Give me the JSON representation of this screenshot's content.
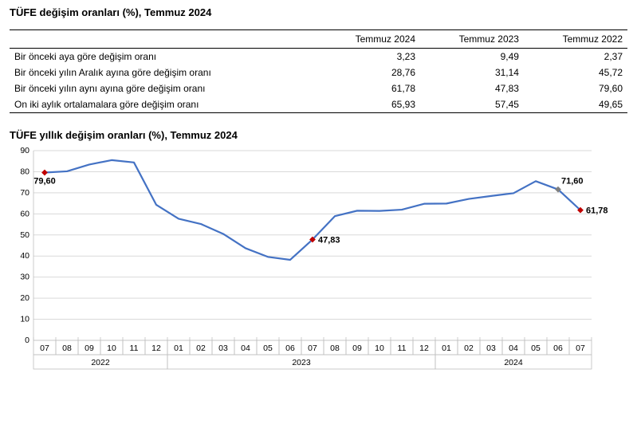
{
  "table": {
    "title": "TÜFE değişim oranları (%), Temmuz 2024",
    "columns": [
      "",
      "Temmuz 2024",
      "Temmuz 2023",
      "Temmuz 2022"
    ],
    "rows": [
      {
        "label": "Bir önceki aya göre değişim oranı",
        "v2024": "3,23",
        "v2023": "9,49",
        "v2022": "2,37"
      },
      {
        "label": "Bir önceki yılın Aralık ayına göre değişim oranı",
        "v2024": "28,76",
        "v2023": "31,14",
        "v2022": "45,72"
      },
      {
        "label": "Bir önceki yılın aynı ayına göre değişim oranı",
        "v2024": "61,78",
        "v2023": "47,83",
        "v2022": "79,60"
      },
      {
        "label": "On iki aylık ortalamalara göre değişim oranı",
        "v2024": "65,93",
        "v2023": "57,45",
        "v2022": "49,65"
      }
    ]
  },
  "chart": {
    "title": "TÜFE yıllık değişim oranları (%), Temmuz 2024",
    "type": "line",
    "ylim": [
      0,
      90
    ],
    "ytick_step": 10,
    "yticks": [
      0,
      10,
      20,
      30,
      40,
      50,
      60,
      70,
      80,
      90
    ],
    "grid_color": "#d9d9d9",
    "axis_color": "#bfbfbf",
    "line_color": "#4472c4",
    "line_width": 2.2,
    "background_color": "#ffffff",
    "categories": [
      "07",
      "08",
      "09",
      "10",
      "11",
      "12",
      "01",
      "02",
      "03",
      "04",
      "05",
      "06",
      "07",
      "08",
      "09",
      "10",
      "11",
      "12",
      "01",
      "02",
      "03",
      "04",
      "05",
      "06",
      "07"
    ],
    "year_groups": [
      {
        "label": "2022",
        "span": [
          0,
          5
        ]
      },
      {
        "label": "2023",
        "span": [
          6,
          17
        ]
      },
      {
        "label": "2024",
        "span": [
          18,
          24
        ]
      }
    ],
    "values": [
      79.6,
      80.2,
      83.4,
      85.5,
      84.4,
      64.3,
      57.7,
      55.2,
      50.5,
      43.7,
      39.6,
      38.2,
      47.83,
      58.9,
      61.5,
      61.4,
      62.0,
      64.8,
      64.9,
      67.1,
      68.5,
      69.8,
      75.5,
      71.6,
      61.78
    ],
    "markers": [
      {
        "index": 0,
        "value": 79.6,
        "label": "79,60",
        "color": "#c00000",
        "label_pos": "below-left"
      },
      {
        "index": 12,
        "value": 47.83,
        "label": "47,83",
        "color": "#c00000",
        "label_pos": "right"
      },
      {
        "index": 23,
        "value": 71.6,
        "label": "71,60",
        "color": "#7f7f7f",
        "label_pos": "above-right"
      },
      {
        "index": 24,
        "value": 61.78,
        "label": "61,78",
        "color": "#c00000",
        "label_pos": "right"
      }
    ],
    "marker_radius": 3.2,
    "label_fontsize": 11
  }
}
